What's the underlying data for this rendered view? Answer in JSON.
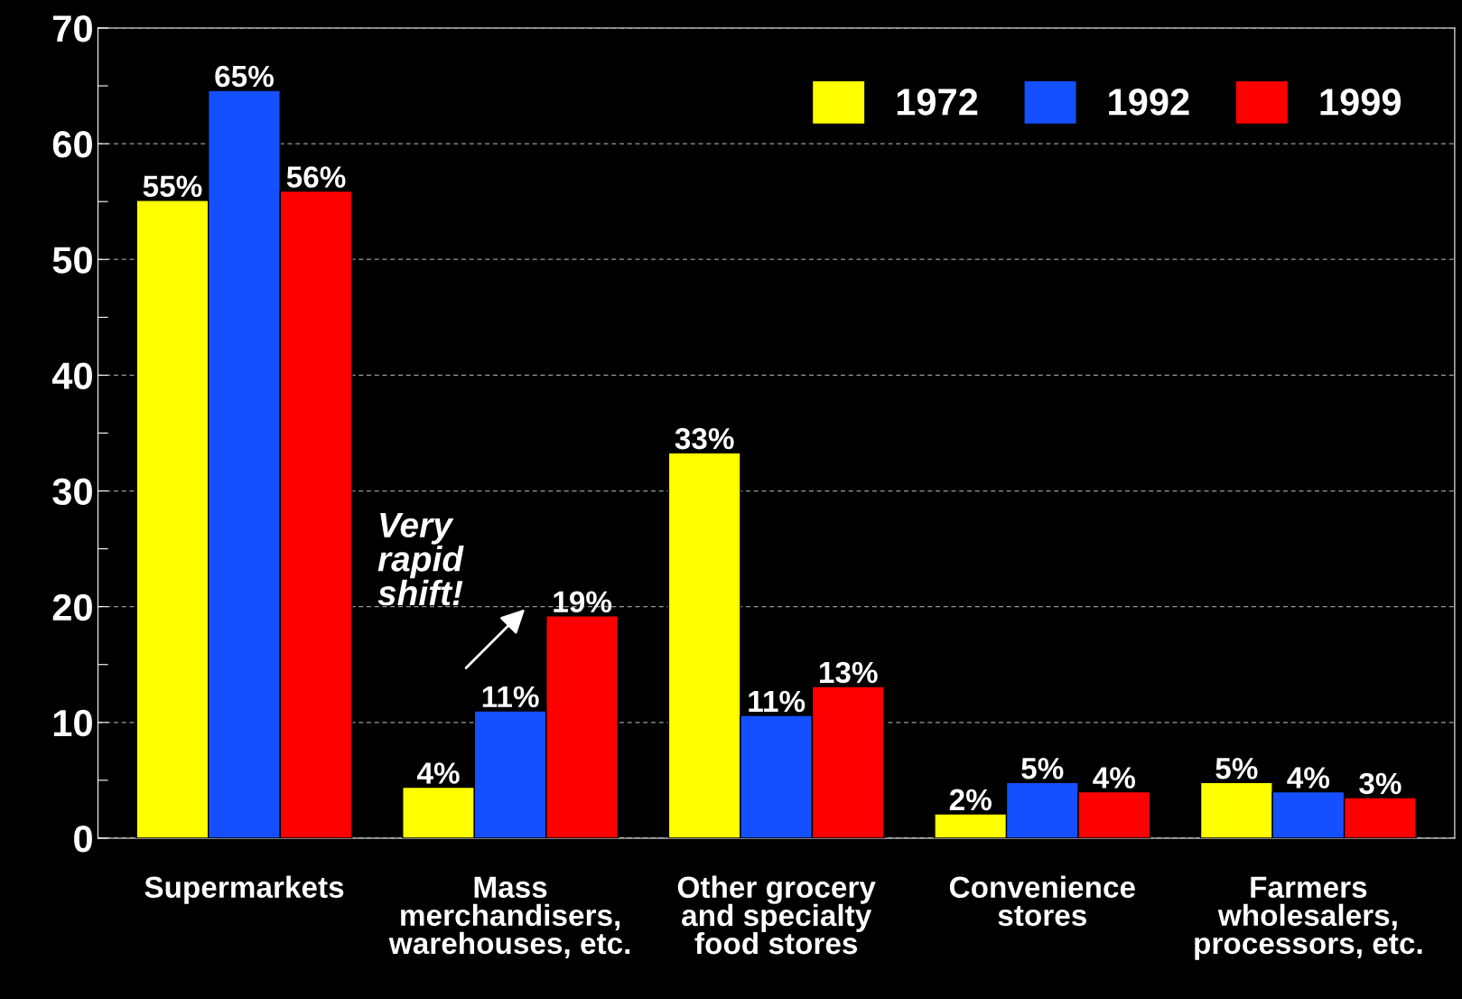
{
  "chart_data": {
    "type": "bar",
    "categories": [
      "Supermarkets",
      "Mass\nmerchandisers,\nwarehouses, etc.",
      "Other grocery\nand specialty\nfood stores",
      "Convenience\nstores",
      "Farmers\nwholesalers,\nprocessors, etc."
    ],
    "series": [
      {
        "name": "1972",
        "color": "#ffff00",
        "values": [
          55.1,
          4.4,
          33.3,
          2.1,
          4.8
        ],
        "value_labels": [
          "55%",
          "4%",
          "33%",
          "2%",
          "5%"
        ]
      },
      {
        "name": "1992",
        "color": "#1450ff",
        "values": [
          64.6,
          11.0,
          10.6,
          4.8,
          4.0
        ],
        "value_labels": [
          "65%",
          "11%",
          "11%",
          "5%",
          "4%"
        ]
      },
      {
        "name": "1999",
        "color": "#ff0000",
        "values": [
          55.9,
          19.2,
          13.1,
          4.0,
          3.5
        ],
        "value_labels": [
          "56%",
          "19%",
          "13%",
          "4%",
          "3%"
        ]
      }
    ],
    "ylim": [
      0,
      70
    ],
    "yticks": [
      0,
      {
        "value": 5,
        "label": null
      },
      10,
      {
        "value": 15,
        "label": null
      },
      20,
      {
        "value": 25,
        "label": null
      },
      30,
      {
        "value": 35,
        "label": null
      },
      40,
      {
        "value": 45,
        "label": null
      },
      50,
      {
        "value": 55,
        "label": null
      },
      60,
      {
        "value": 65,
        "label": null
      },
      70
    ],
    "grid": "y",
    "legend": "top right",
    "annotations": [
      "Very\nrapid\nshift!"
    ]
  }
}
